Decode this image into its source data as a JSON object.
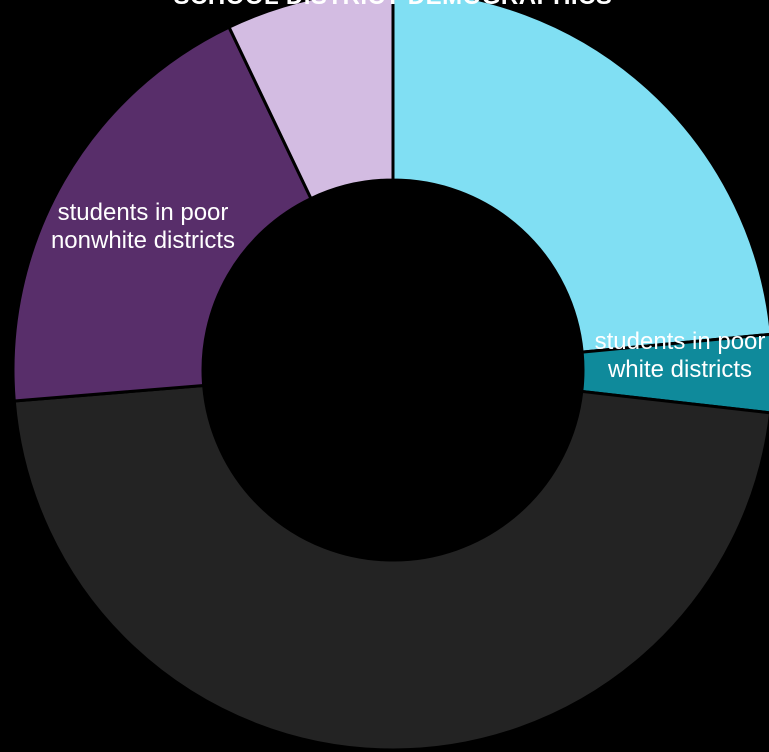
{
  "chart_data": {
    "type": "pie",
    "donut": true,
    "title": "SCHOOL DISTRICT DEMOGRAPHICS",
    "start": "top (12 o'clock), clockwise",
    "slices": [
      {
        "label": "",
        "value": 23.5,
        "color": "#80dff3"
      },
      {
        "label": "students in poor white districts",
        "value": 3.3,
        "color": "#0f8a9b"
      },
      {
        "label": "",
        "value": 46.9,
        "color": "#232323"
      },
      {
        "label": "students in poor nonwhite districts",
        "value": 19.2,
        "color": "#582e6a"
      },
      {
        "label": "",
        "value": 7.1,
        "color": "#d3bce2"
      }
    ],
    "label_lines": [
      {
        "slice": 1,
        "lines": [
          "students in poor",
          "white districts"
        ]
      },
      {
        "slice": 3,
        "lines": [
          "students in poor",
          "nonwhite districts"
        ]
      }
    ],
    "colors": {
      "background": "#000000",
      "slice_border": "#000000",
      "text": "#ffffff"
    }
  }
}
